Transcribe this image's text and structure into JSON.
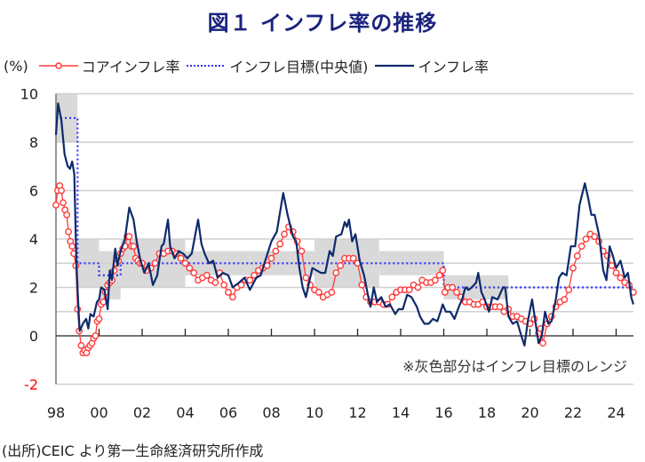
{
  "title": "図１ インフレ率の推移",
  "source": "(出所)CEIC より第一生命経済研究所作成",
  "colors": {
    "core": "#ff3b3b",
    "target": "#3333ff",
    "headline": "#0d2a6b",
    "band": "#d9d9d9",
    "grid": "#d0d0d0",
    "title": "#1a237e"
  },
  "chart_data": {
    "type": "line",
    "title": "図１ インフレ率の推移",
    "ylabel": "(%)",
    "xlabel": "",
    "ylim": [
      -2,
      10
    ],
    "xlim": [
      1998.0,
      2024.85
    ],
    "yticks": [
      10,
      8,
      6,
      4,
      2,
      0,
      -2
    ],
    "ytick_labels": [
      "10",
      "8",
      "6",
      "4",
      "2",
      "0",
      "-2"
    ],
    "gridlines": [
      10,
      8,
      6,
      4,
      3,
      2,
      1,
      -2
    ],
    "xticks": [
      1998,
      2000,
      2002,
      2004,
      2006,
      2008,
      2010,
      2012,
      2014,
      2016,
      2018,
      2020,
      2022,
      2024
    ],
    "xtick_labels": [
      "98",
      "00",
      "02",
      "04",
      "06",
      "08",
      "10",
      "12",
      "14",
      "16",
      "18",
      "20",
      "22",
      "24"
    ],
    "legend": {
      "placement": "top",
      "entries": [
        "コアインフレ率",
        "インフレ目標(中央値)",
        "インフレ率"
      ]
    },
    "annotation": "※灰色部分はインフレ目標のレンジ",
    "target_range": [
      {
        "from": 1998.0,
        "to": 1999.0,
        "low": 8.0,
        "high": 10.0,
        "mid": 9.0
      },
      {
        "from": 1999.0,
        "to": 2000.0,
        "low": 2.0,
        "high": 4.0,
        "mid": 3.0
      },
      {
        "from": 2000.0,
        "to": 2001.0,
        "low": 1.5,
        "high": 3.5,
        "mid": 2.5
      },
      {
        "from": 2001.0,
        "to": 2004.0,
        "low": 2.0,
        "high": 4.0,
        "mid": 3.0
      },
      {
        "from": 2004.0,
        "to": 2007.0,
        "low": 2.5,
        "high": 3.5,
        "mid": 3.0
      },
      {
        "from": 2007.0,
        "to": 2010.0,
        "low": 2.5,
        "high": 3.5,
        "mid": 3.0
      },
      {
        "from": 2010.0,
        "to": 2013.0,
        "low": 2.0,
        "high": 4.0,
        "mid": 3.0
      },
      {
        "from": 2013.0,
        "to": 2016.0,
        "low": 2.5,
        "high": 3.5,
        "mid": 3.0
      },
      {
        "from": 2016.0,
        "to": 2019.0,
        "low": 1.5,
        "high": 2.5,
        "mid": 2.0
      },
      {
        "from": 2019.0,
        "to": 2024.85,
        "low": null,
        "high": null,
        "mid": 2.0
      }
    ],
    "series": [
      {
        "name": "コアインフレ率",
        "style": "line-with-circle-markers",
        "x": [
          1998.0,
          1998.08,
          1998.17,
          1998.25,
          1998.33,
          1998.42,
          1998.5,
          1998.58,
          1998.67,
          1998.75,
          1998.83,
          1998.92,
          1999.0,
          1999.08,
          1999.17,
          1999.25,
          1999.33,
          1999.42,
          1999.5,
          1999.58,
          1999.67,
          1999.75,
          1999.83,
          1999.92,
          2000.0,
          2000.1,
          2000.2,
          2000.3,
          2000.4,
          2000.5,
          2000.6,
          2000.7,
          2000.8,
          2000.9,
          2001.0,
          2001.1,
          2001.2,
          2001.3,
          2001.4,
          2001.5,
          2001.6,
          2001.7,
          2001.8,
          2001.9,
          2002.0,
          2002.2,
          2002.4,
          2002.6,
          2002.8,
          2003.0,
          2003.2,
          2003.4,
          2003.6,
          2003.8,
          2004.0,
          2004.2,
          2004.4,
          2004.6,
          2004.8,
          2005.0,
          2005.2,
          2005.4,
          2005.6,
          2005.8,
          2006.0,
          2006.2,
          2006.4,
          2006.6,
          2006.8,
          2007.0,
          2007.2,
          2007.4,
          2007.6,
          2007.8,
          2008.0,
          2008.2,
          2008.4,
          2008.6,
          2008.8,
          2009.0,
          2009.2,
          2009.4,
          2009.6,
          2009.8,
          2010.0,
          2010.2,
          2010.4,
          2010.6,
          2010.8,
          2011.0,
          2011.2,
          2011.4,
          2011.6,
          2011.8,
          2012.0,
          2012.2,
          2012.4,
          2012.6,
          2012.8,
          2013.0,
          2013.2,
          2013.4,
          2013.6,
          2013.8,
          2014.0,
          2014.2,
          2014.4,
          2014.6,
          2014.8,
          2015.0,
          2015.2,
          2015.4,
          2015.6,
          2015.8,
          2015.95,
          2016.05,
          2016.2,
          2016.4,
          2016.6,
          2016.8,
          2017.0,
          2017.2,
          2017.4,
          2017.6,
          2017.8,
          2018.0,
          2018.2,
          2018.4,
          2018.6,
          2018.8,
          2019.0,
          2019.2,
          2019.4,
          2019.6,
          2019.8,
          2020.0,
          2020.2,
          2020.4,
          2020.5,
          2020.6,
          2020.8,
          2021.0,
          2021.2,
          2021.4,
          2021.6,
          2021.8,
          2022.0,
          2022.2,
          2022.4,
          2022.6,
          2022.8,
          2023.0,
          2023.2,
          2023.4,
          2023.6,
          2023.8,
          2024.0,
          2024.2,
          2024.4,
          2024.6,
          2024.8
        ],
        "values": [
          5.4,
          6.0,
          6.2,
          6.0,
          5.5,
          5.2,
          5.0,
          4.3,
          3.9,
          3.7,
          3.4,
          2.9,
          1.1,
          0.2,
          -0.4,
          -0.7,
          -0.6,
          -0.7,
          -0.5,
          -0.4,
          -0.3,
          -0.1,
          0.0,
          0.6,
          0.7,
          1.3,
          1.4,
          1.8,
          2.1,
          2.2,
          2.3,
          2.7,
          3.0,
          3.1,
          3.4,
          3.6,
          3.7,
          4.1,
          4.1,
          3.7,
          3.7,
          3.2,
          3.1,
          3.0,
          3.0,
          2.7,
          2.8,
          3.0,
          3.4,
          3.4,
          3.5,
          3.5,
          3.4,
          3.2,
          3.0,
          2.8,
          2.6,
          2.3,
          2.4,
          2.5,
          2.3,
          2.2,
          2.6,
          2.1,
          1.8,
          1.6,
          2.0,
          2.1,
          2.3,
          2.3,
          2.5,
          2.7,
          2.8,
          2.9,
          3.2,
          3.5,
          3.8,
          4.2,
          4.5,
          4.3,
          3.9,
          3.5,
          2.4,
          2.1,
          1.9,
          1.8,
          1.6,
          1.7,
          1.8,
          2.6,
          2.9,
          3.2,
          3.2,
          3.2,
          3.0,
          2.1,
          1.6,
          1.4,
          1.4,
          1.4,
          1.3,
          1.3,
          1.6,
          1.8,
          1.9,
          1.9,
          1.9,
          2.1,
          2.0,
          2.3,
          2.2,
          2.2,
          2.3,
          2.5,
          2.7,
          1.8,
          2.0,
          2.0,
          1.8,
          1.6,
          1.4,
          1.4,
          1.3,
          1.3,
          1.4,
          1.2,
          1.2,
          1.2,
          1.2,
          1.0,
          1.1,
          0.8,
          0.8,
          0.7,
          0.6,
          0.5,
          0.7,
          0.1,
          0.3,
          -0.3,
          0.5,
          0.8,
          1.2,
          1.4,
          1.5,
          1.9,
          2.8,
          3.3,
          3.7,
          4.0,
          4.2,
          4.1,
          3.9,
          3.5,
          3.3,
          2.9,
          2.6,
          2.4,
          2.2,
          2.1,
          1.8
        ]
      },
      {
        "name": "インフレ目標(中央値)",
        "style": "dotted",
        "x": [
          1998.0,
          1999.0,
          1999.0,
          2000.0,
          2000.0,
          2001.0,
          2001.0,
          2016.0,
          2016.0,
          2024.85
        ],
        "values": [
          9.0,
          9.0,
          3.0,
          3.0,
          2.5,
          2.5,
          3.0,
          3.0,
          2.0,
          2.0
        ]
      },
      {
        "name": "インフレ率",
        "style": "solid",
        "x": [
          1998.0,
          1998.1,
          1998.25,
          1998.4,
          1998.55,
          1998.65,
          1998.75,
          1998.85,
          1998.95,
          1999.05,
          1999.1,
          1999.25,
          1999.4,
          1999.5,
          1999.6,
          1999.75,
          1999.9,
          2000.0,
          2000.1,
          2000.25,
          2000.4,
          2000.5,
          2000.6,
          2000.75,
          2000.85,
          2001.0,
          2001.2,
          2001.4,
          2001.6,
          2001.75,
          2001.9,
          2002.1,
          2002.3,
          2002.5,
          2002.7,
          2002.9,
          2003.0,
          2003.2,
          2003.3,
          2003.5,
          2003.7,
          2003.9,
          2004.1,
          2004.3,
          2004.6,
          2004.75,
          2004.9,
          2005.1,
          2005.3,
          2005.5,
          2005.75,
          2006.0,
          2006.2,
          2006.5,
          2006.75,
          2007.0,
          2007.3,
          2007.5,
          2007.75,
          2008.0,
          2008.25,
          2008.55,
          2008.75,
          2009.0,
          2009.15,
          2009.3,
          2009.45,
          2009.6,
          2009.75,
          2009.9,
          2010.1,
          2010.3,
          2010.5,
          2010.7,
          2010.85,
          2011.0,
          2011.25,
          2011.4,
          2011.5,
          2011.6,
          2011.75,
          2011.9,
          2012.1,
          2012.3,
          2012.5,
          2012.6,
          2012.75,
          2012.9,
          2013.1,
          2013.3,
          2013.5,
          2013.75,
          2013.9,
          2014.1,
          2014.3,
          2014.5,
          2014.75,
          2014.9,
          2015.1,
          2015.3,
          2015.5,
          2015.7,
          2015.85,
          2015.95,
          2016.1,
          2016.3,
          2016.5,
          2016.7,
          2016.85,
          2017.0,
          2017.15,
          2017.3,
          2017.5,
          2017.6,
          2017.75,
          2017.9,
          2018.1,
          2018.25,
          2018.5,
          2018.75,
          2018.85,
          2019.0,
          2019.2,
          2019.4,
          2019.6,
          2019.75,
          2019.9,
          2020.1,
          2020.3,
          2020.4,
          2020.55,
          2020.7,
          2020.85,
          2021.0,
          2021.2,
          2021.35,
          2021.5,
          2021.7,
          2021.9,
          2022.1,
          2022.3,
          2022.55,
          2022.7,
          2022.85,
          2023.0,
          2023.2,
          2023.4,
          2023.55,
          2023.7,
          2023.85,
          2024.0,
          2024.2,
          2024.4,
          2024.55,
          2024.7,
          2024.8
        ],
        "values": [
          8.3,
          9.6,
          8.9,
          7.5,
          7.0,
          6.9,
          7.2,
          6.7,
          3.0,
          1.0,
          0.2,
          0.5,
          0.7,
          0.3,
          0.9,
          0.8,
          1.4,
          1.5,
          2.0,
          1.9,
          1.1,
          2.7,
          2.3,
          3.6,
          2.9,
          3.5,
          4.0,
          5.3,
          4.8,
          3.9,
          3.2,
          2.6,
          3.0,
          2.1,
          2.5,
          3.7,
          3.8,
          4.8,
          3.7,
          3.2,
          3.5,
          3.4,
          3.2,
          3.4,
          4.8,
          3.8,
          3.4,
          3.0,
          3.1,
          2.4,
          2.6,
          2.5,
          2.0,
          2.2,
          2.4,
          1.9,
          2.4,
          2.5,
          3.2,
          3.9,
          4.3,
          5.9,
          5.0,
          4.1,
          3.9,
          2.8,
          2.0,
          1.6,
          2.2,
          2.8,
          2.7,
          2.6,
          2.6,
          3.5,
          3.3,
          4.1,
          4.2,
          4.7,
          4.5,
          4.8,
          3.9,
          4.2,
          3.1,
          2.5,
          1.6,
          1.2,
          2.0,
          1.4,
          1.6,
          1.2,
          1.3,
          0.9,
          1.1,
          1.1,
          1.7,
          1.6,
          1.2,
          0.8,
          0.5,
          0.5,
          0.7,
          0.6,
          1.0,
          1.3,
          1.0,
          1.0,
          0.7,
          1.2,
          1.5,
          2.0,
          1.9,
          2.0,
          2.2,
          2.6,
          1.8,
          1.5,
          1.0,
          1.6,
          1.5,
          2.0,
          2.0,
          0.8,
          0.5,
          0.6,
          0.0,
          -0.4,
          0.6,
          1.5,
          0.3,
          -0.3,
          0.0,
          1.0,
          0.5,
          0.6,
          1.5,
          2.4,
          2.6,
          2.5,
          3.7,
          3.7,
          5.4,
          6.3,
          5.7,
          5.0,
          5.0,
          4.2,
          2.7,
          2.3,
          3.7,
          3.3,
          2.8,
          3.1,
          2.4,
          2.6,
          1.6,
          1.3
        ]
      }
    ]
  }
}
